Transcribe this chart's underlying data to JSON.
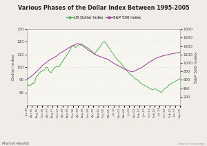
{
  "title": "Various Phases of the Dollar Index Between 1995-2005",
  "ylabel_left": "Dollar Index",
  "ylabel_right": "S&P 500 Index",
  "left_ylim": [
    70,
    130
  ],
  "right_ylim": [
    0,
    1800
  ],
  "left_yticks": [
    80,
    90,
    100,
    110,
    120,
    130
  ],
  "right_yticks": [
    200,
    400,
    600,
    800,
    1000,
    1200,
    1400,
    1600,
    1800
  ],
  "dollar_color": "#5ab55a",
  "sp500_color": "#a040a0",
  "background_color": "#f0ede8",
  "plot_bg_color": "#f7f5f0",
  "grid_color": "#d8d4cc",
  "xtick_labels": [
    "Jan-96",
    "Apr-96",
    "Aug-96",
    "Dec-96",
    "Apr-97",
    "Aug-97",
    "Dec-97",
    "Apr-98",
    "Aug-98",
    "Dec-98",
    "Apr-99",
    "Aug-99",
    "Dec-99",
    "Apr-00",
    "Aug-00",
    "Dec-00",
    "Mar-01",
    "Jun-01",
    "Nov-01",
    "Mar-02",
    "Jul-02",
    "Nov-02",
    "Feb-03",
    "Jun-03",
    "Oct-03",
    "Feb-04",
    "Jun-04",
    "Oct-04",
    "Feb-05",
    "Jun-05",
    "Sep-05"
  ],
  "dollar_index": [
    86.5,
    85.5,
    86.0,
    85.5,
    86.0,
    87.5,
    87.0,
    88.0,
    91.0,
    93.0,
    93.5,
    95.0,
    96.0,
    96.5,
    97.0,
    97.5,
    98.0,
    99.5,
    100.0,
    99.5,
    97.0,
    96.0,
    95.5,
    97.0,
    98.5,
    99.5,
    100.0,
    101.0,
    100.5,
    100.0,
    101.5,
    103.0,
    104.0,
    105.5,
    107.0,
    108.0,
    109.5,
    110.5,
    112.0,
    113.5,
    115.0,
    116.5,
    117.5,
    116.5,
    115.5,
    116.5,
    117.0,
    117.5,
    118.0,
    118.5,
    118.0,
    117.5,
    117.0,
    116.5,
    116.0,
    115.5,
    115.0,
    114.0,
    113.0,
    112.5,
    111.5,
    110.5,
    111.0,
    112.5,
    113.5,
    114.5,
    115.5,
    117.0,
    118.5,
    119.5,
    120.0,
    119.5,
    118.5,
    117.5,
    116.0,
    114.5,
    113.0,
    112.0,
    111.0,
    109.5,
    108.0,
    107.0,
    106.0,
    105.0,
    104.5,
    103.5,
    102.5,
    101.0,
    100.0,
    99.0,
    98.0,
    97.0,
    96.0,
    95.0,
    94.0,
    93.5,
    93.0,
    92.0,
    91.0,
    90.5,
    90.0,
    89.5,
    88.5,
    87.5,
    87.0,
    86.5,
    86.0,
    85.5,
    85.0,
    84.5,
    84.0,
    83.5,
    83.0,
    82.5,
    82.0,
    82.5,
    83.0,
    82.5,
    82.0,
    81.5,
    81.0,
    80.5,
    80.0,
    81.0,
    82.0,
    83.0,
    83.5,
    84.0,
    85.0,
    86.0,
    86.5,
    87.0,
    87.5,
    88.0,
    88.5,
    89.0,
    89.5,
    90.0,
    90.5,
    91.0
  ],
  "sp500_index": [
    615,
    625,
    645,
    665,
    685,
    705,
    730,
    755,
    780,
    800,
    830,
    860,
    880,
    910,
    940,
    960,
    980,
    1000,
    1020,
    1040,
    1060,
    1075,
    1090,
    1105,
    1120,
    1135,
    1150,
    1165,
    1185,
    1210,
    1230,
    1245,
    1260,
    1275,
    1290,
    1310,
    1325,
    1340,
    1360,
    1375,
    1390,
    1400,
    1415,
    1425,
    1440,
    1450,
    1460,
    1455,
    1440,
    1430,
    1415,
    1400,
    1380,
    1360,
    1340,
    1320,
    1300,
    1285,
    1270,
    1255,
    1235,
    1215,
    1200,
    1185,
    1175,
    1165,
    1155,
    1145,
    1135,
    1125,
    1115,
    1110,
    1100,
    1090,
    1075,
    1060,
    1040,
    1020,
    1005,
    990,
    975,
    960,
    945,
    935,
    920,
    905,
    890,
    875,
    860,
    845,
    840,
    830,
    820,
    810,
    800,
    795,
    790,
    800,
    815,
    830,
    840,
    850,
    865,
    875,
    890,
    910,
    930,
    945,
    960,
    980,
    1000,
    1015,
    1030,
    1050,
    1065,
    1080,
    1095,
    1110,
    1120,
    1130,
    1140,
    1150,
    1155,
    1165,
    1175,
    1180,
    1185,
    1190,
    1195,
    1200,
    1205,
    1215,
    1220,
    1225,
    1230,
    1235,
    1240,
    1245,
    1250,
    1255
  ],
  "legend_dollar": "US Dollar Index",
  "legend_sp500": "S&P 500 Index",
  "watermark": "Market Realist",
  "source": "Source: Exchange"
}
